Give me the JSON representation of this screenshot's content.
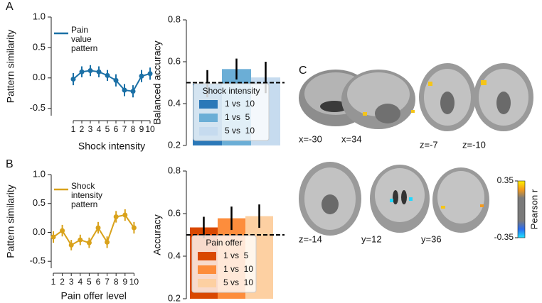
{
  "panel_labels": [
    "A",
    "B",
    "C"
  ],
  "chart_data": [
    {
      "type": "line",
      "ylabel": "Pattern similarity",
      "xlabel": "Shock intensity",
      "categories": [
        "1",
        "2",
        "3",
        "4",
        "5",
        "6",
        "7",
        "8",
        "9",
        "10"
      ],
      "ylim": [
        -0.62,
        1.0
      ],
      "yticks": [
        -0.5,
        {
          "value": 0,
          "label": "0.0"
        },
        0.5,
        {
          "value": 1,
          "label": "1.0"
        }
      ],
      "legend": "upper left",
      "series": [
        {
          "name": "Pain value pattern",
          "color": "#1b70a6",
          "values": [
            -0.02,
            0.1,
            0.12,
            0.1,
            0.04,
            -0.04,
            -0.2,
            -0.22,
            0.03,
            0.07
          ],
          "errors": [
            0.1,
            0.09,
            0.09,
            0.09,
            0.09,
            0.1,
            0.1,
            0.1,
            0.1,
            0.1
          ]
        }
      ]
    },
    {
      "type": "bar",
      "ylabel": "Balanced accuracy",
      "ylim": [
        0.2,
        0.8
      ],
      "yticks": [
        0.2,
        0.4,
        0.6,
        0.8
      ],
      "legend_title": "Shock intensity",
      "categories": [
        "1 vs  10",
        "1 vs  5",
        "5 vs  10"
      ],
      "values": [
        0.495,
        0.565,
        0.525
      ],
      "errors": [
        0.065,
        0.05,
        0.075
      ],
      "colors": [
        "#2b78b8",
        "#6baed6",
        "#c6dbef"
      ],
      "chance_level": 0.5
    },
    {
      "type": "line",
      "ylabel": "Pattern similarity",
      "xlabel": "Pain offer level",
      "categories": [
        "1",
        "2",
        "3",
        "4",
        "5",
        "6",
        "7",
        "8",
        "9",
        "10"
      ],
      "ylim": [
        -0.62,
        1.0
      ],
      "yticks": [
        -0.5,
        {
          "value": 0,
          "label": "0.0"
        },
        0.5,
        {
          "value": 1,
          "label": "1.0"
        }
      ],
      "legend": "upper left",
      "series": [
        {
          "name": "Shock intensity pattern",
          "color": "#d9a21b",
          "values": [
            -0.08,
            0.03,
            -0.22,
            -0.13,
            -0.18,
            0.08,
            -0.17,
            0.27,
            0.3,
            0.08
          ],
          "errors": [
            0.1,
            0.1,
            0.09,
            0.09,
            0.09,
            0.1,
            0.1,
            0.1,
            0.1,
            0.1
          ]
        }
      ]
    },
    {
      "type": "bar",
      "ylabel": "Accuracy",
      "ylim": [
        0.2,
        0.8
      ],
      "yticks": [
        0.2,
        0.4,
        0.6,
        0.8
      ],
      "legend_title": "Pain offer",
      "categories": [
        "1 vs  5",
        "1 vs  10",
        "5 vs  10"
      ],
      "values": [
        0.535,
        0.578,
        0.588
      ],
      "errors": [
        0.05,
        0.055,
        0.055
      ],
      "colors": [
        "#d94801",
        "#fd8d3c",
        "#fdd0a2"
      ],
      "chance_level": 0.5
    }
  ],
  "brain_slices": [
    "x=-30",
    "x=34",
    "z=-7",
    "z=-10",
    "z=-14",
    "y=12",
    "y=36"
  ],
  "colorbar": {
    "label": "Pearson r",
    "ticks": [
      0.35,
      -0.35
    ]
  }
}
